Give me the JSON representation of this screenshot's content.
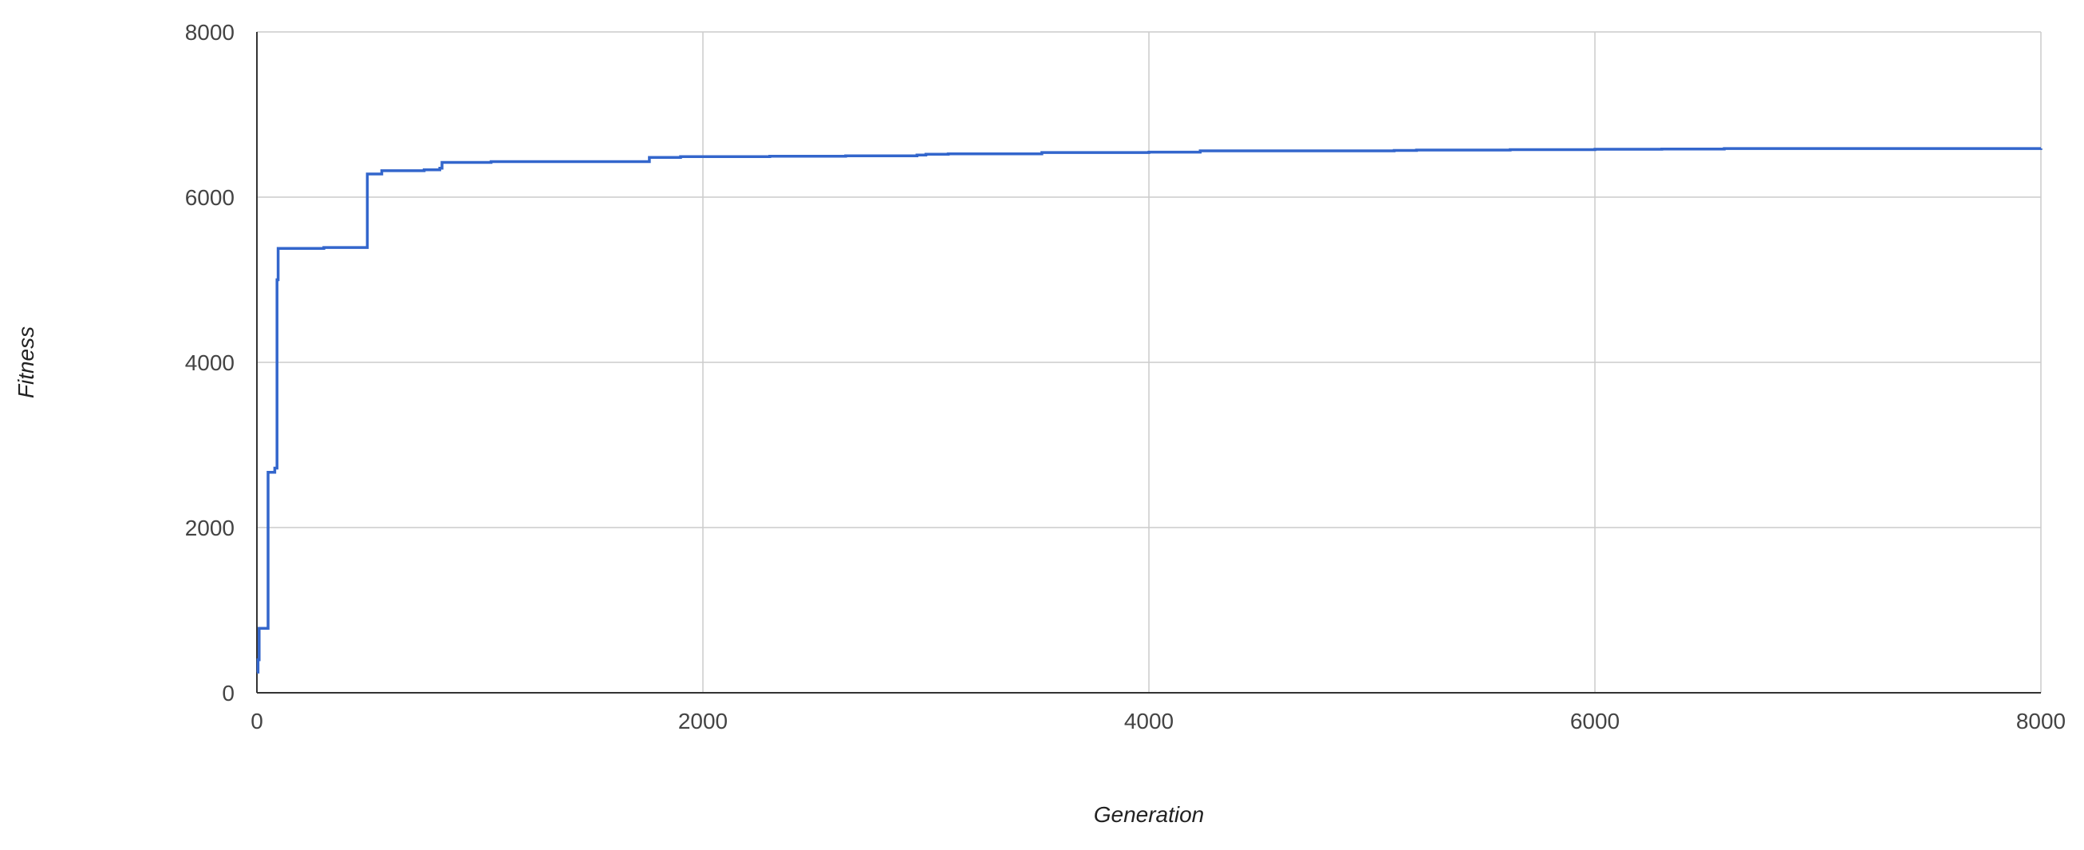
{
  "chart_data": {
    "type": "line",
    "title": "",
    "xlabel": "Generation",
    "ylabel": "Fitness",
    "xlim": [
      0,
      8000
    ],
    "ylim": [
      0,
      8000
    ],
    "x_ticks": [
      0,
      2000,
      4000,
      6000,
      8000
    ],
    "y_ticks": [
      0,
      2000,
      4000,
      6000,
      8000
    ],
    "x_tick_labels": [
      "0",
      "2000",
      "4000",
      "6000",
      "8000"
    ],
    "y_tick_labels": [
      "0",
      "2000",
      "4000",
      "6000",
      "8000"
    ],
    "grid": true,
    "legend": "none",
    "step": true,
    "color": "#3366cc",
    "series": [
      {
        "x": [
          0,
          5,
          10,
          15,
          50,
          55,
          70,
          80,
          90,
          95,
          100,
          300,
          490,
          495,
          560,
          600,
          750,
          820,
          830,
          1050,
          1760,
          1900,
          2300,
          2640,
          2960,
          3000,
          3100,
          3520,
          4000,
          4230,
          4500,
          5100,
          5200,
          5620,
          6000,
          6300,
          6580,
          8000
        ],
        "y": [
          250,
          400,
          780,
          780,
          2670,
          2670,
          2670,
          2720,
          5000,
          5380,
          5380,
          5390,
          5390,
          6280,
          6320,
          6320,
          6330,
          6350,
          6420,
          6430,
          6480,
          6490,
          6495,
          6500,
          6510,
          6520,
          6525,
          6540,
          6545,
          6560,
          6560,
          6565,
          6570,
          6575,
          6580,
          6582,
          6588,
          6590
        ]
      }
    ]
  }
}
